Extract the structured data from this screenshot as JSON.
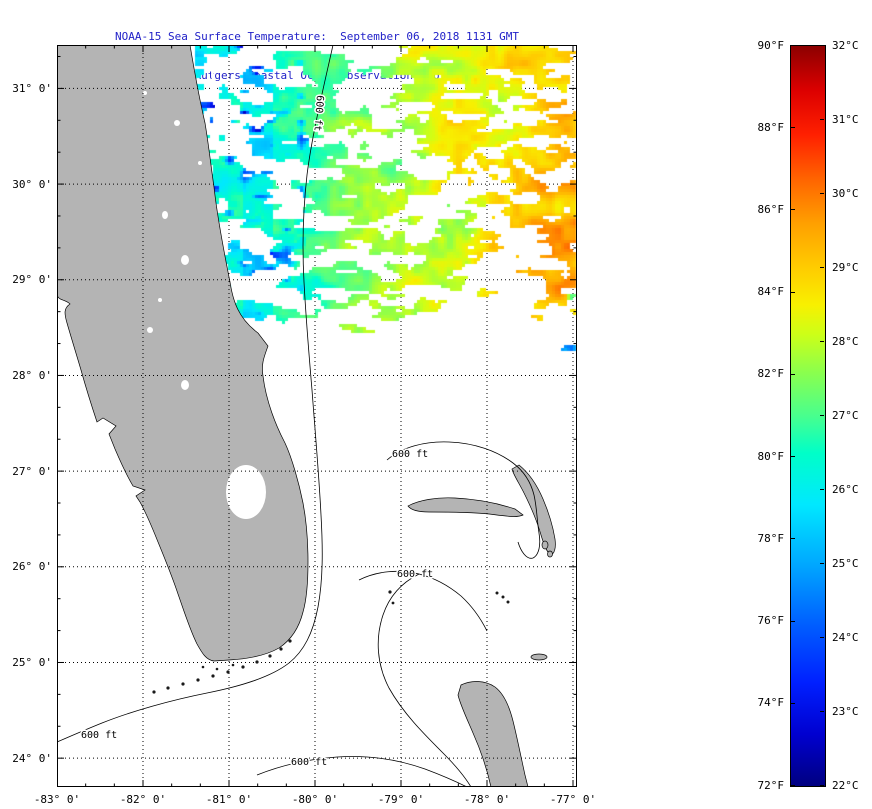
{
  "title": {
    "line1": "NOAA-15 Sea Surface Temperature:  September 06, 2018 1131 GMT",
    "line2": "Rutgers Coastal Ocean Observation Lab",
    "color": "#2121c8"
  },
  "map_axes": {
    "lat_labels": [
      "31° 0'",
      "30° 0'",
      "29° 0'",
      "28° 0'",
      "27° 0'",
      "26° 0'",
      "25° 0'",
      "24° 0'"
    ],
    "lon_labels": [
      "-83° 0'",
      "-82° 0'",
      "-81° 0'",
      "-80° 0'",
      "-79° 0'",
      "-78° 0'",
      "-77° 0'"
    ]
  },
  "map": {
    "contour_label": "600 ft",
    "land_color": "#b4b4b4",
    "ocean_color": "#ffffff",
    "coastline_color": "#000000"
  },
  "colorbar": {
    "f_labels": [
      "90°F",
      "88°F",
      "86°F",
      "84°F",
      "82°F",
      "80°F",
      "78°F",
      "76°F",
      "74°F",
      "72°F"
    ],
    "c_labels": [
      "32°C",
      "31°C",
      "30°C",
      "29°C",
      "28°C",
      "27°C",
      "26°C",
      "25°C",
      "24°C",
      "23°C",
      "22°C"
    ],
    "stops": [
      {
        "t": 0.0,
        "c": "#000080"
      },
      {
        "t": 0.07,
        "c": "#0000d0"
      },
      {
        "t": 0.14,
        "c": "#0020ff"
      },
      {
        "t": 0.22,
        "c": "#0060ff"
      },
      {
        "t": 0.3,
        "c": "#00a8ff"
      },
      {
        "t": 0.38,
        "c": "#00e8ff"
      },
      {
        "t": 0.45,
        "c": "#00ffc8"
      },
      {
        "t": 0.5,
        "c": "#48ff8e"
      },
      {
        "t": 0.56,
        "c": "#8cff4c"
      },
      {
        "t": 0.61,
        "c": "#ccff18"
      },
      {
        "t": 0.65,
        "c": "#f8f000"
      },
      {
        "t": 0.7,
        "c": "#ffcc00"
      },
      {
        "t": 0.76,
        "c": "#ffa000"
      },
      {
        "t": 0.82,
        "c": "#ff6400"
      },
      {
        "t": 0.88,
        "c": "#ff2000"
      },
      {
        "t": 0.94,
        "c": "#dc0000"
      },
      {
        "t": 1.0,
        "c": "#8c0000"
      }
    ]
  },
  "chart_data": {
    "type": "heatmap",
    "title": "NOAA-15 Sea Surface Temperature: September 06, 2018 1131 GMT",
    "subtitle": "Rutgers Coastal Ocean Observation Lab",
    "x_axis_lon_deg": [
      -83,
      -82,
      -81,
      -80,
      -79,
      -78,
      -77
    ],
    "y_axis_lat_deg": [
      31,
      30,
      29,
      28,
      27,
      26,
      25,
      24
    ],
    "colorbar_range_f": [
      72,
      90
    ],
    "colorbar_range_c": [
      22,
      32
    ],
    "depth_contour_ft": 600,
    "sst_summary": "Valid satellite SST only over Atlantic north of ~28.7N: cyan/green 25-27C filaments with dark-blue 22-24C patches near the Florida east coast, warming eastward to orange 29-30C offshore; white areas are cloud-masked or no data; land (Florida, Bahamas) gray"
  }
}
